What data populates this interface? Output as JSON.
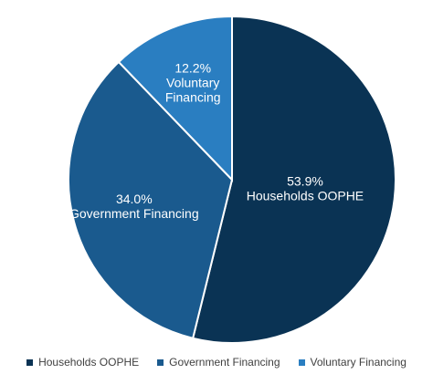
{
  "chart_data": {
    "type": "pie",
    "title": "",
    "slices": [
      {
        "name": "Households OOPHE",
        "value": 53.9,
        "label": "53.9%",
        "color": "#0a3354"
      },
      {
        "name": "Government Financing",
        "value": 34.0,
        "label": "34.0%",
        "color": "#1a5a8e"
      },
      {
        "name": "Voluntary Financing",
        "value": 12.2,
        "label": "12.2%",
        "color": "#2a7ec1"
      }
    ],
    "legend": {
      "position": "bottom",
      "entries": [
        "Households OOPHE",
        "Government Financing",
        "Voluntary Financing"
      ]
    }
  }
}
